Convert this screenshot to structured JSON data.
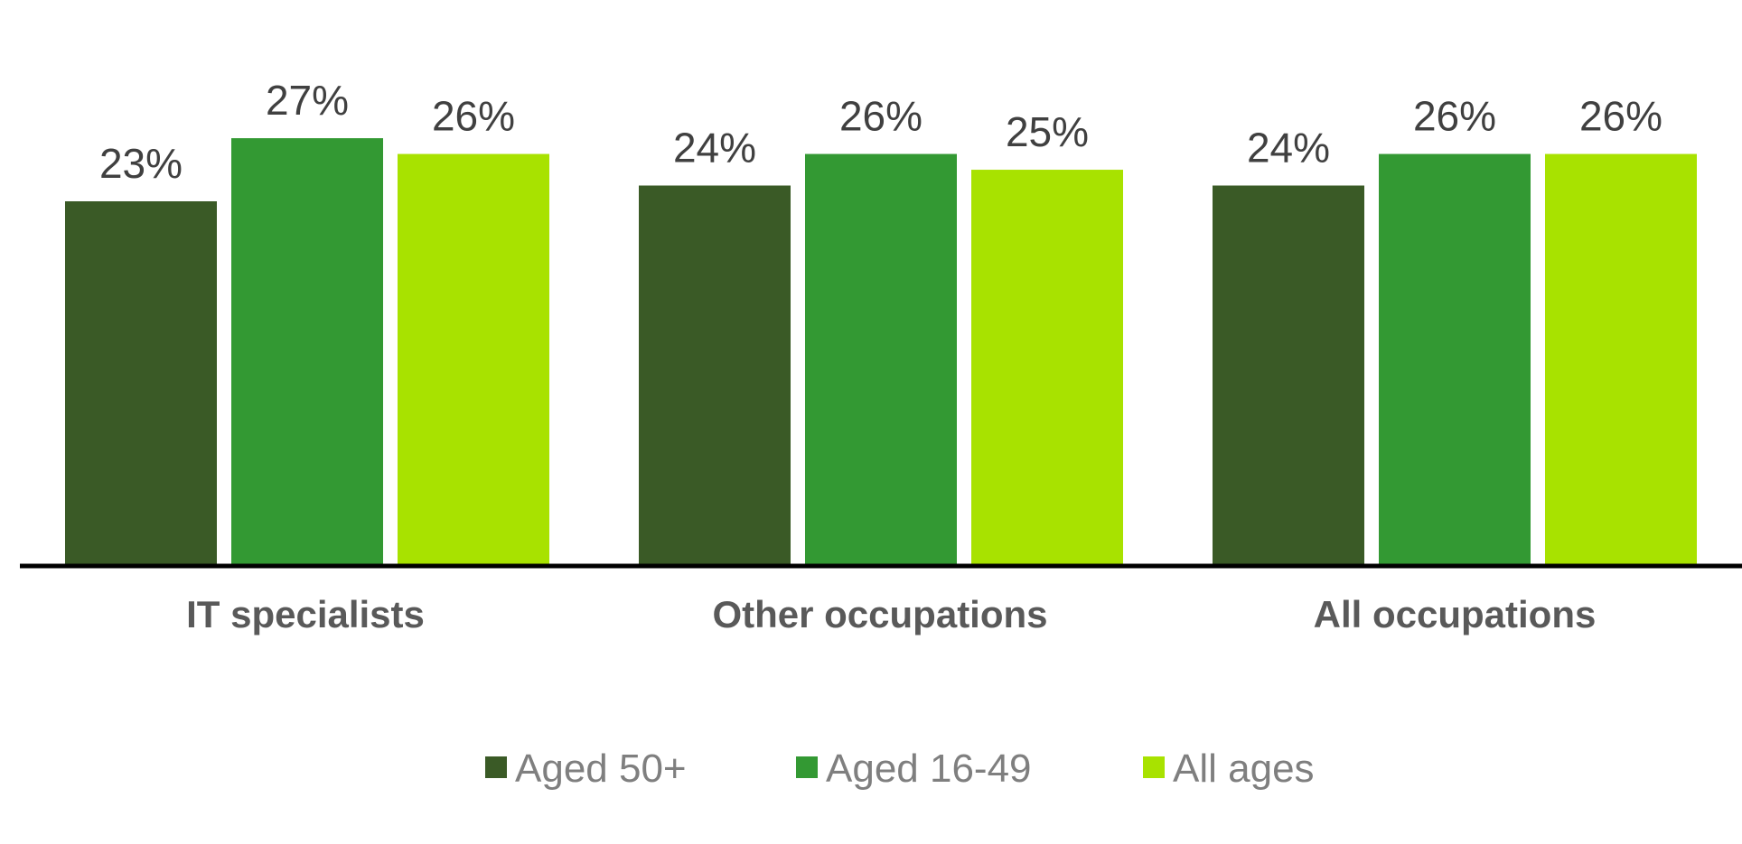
{
  "chart_data": {
    "type": "bar",
    "title": "",
    "xlabel": "",
    "ylabel": "",
    "ylim": [
      0,
      32
    ],
    "grid": false,
    "legend_position": "bottom",
    "categories": [
      "IT specialists",
      "Other occupations",
      "All occupations"
    ],
    "series": [
      {
        "name": "Aged 50+",
        "color": "#3a5a26",
        "values": [
          23,
          24,
          24
        ],
        "labels": [
          "23%",
          "24%",
          "24%"
        ]
      },
      {
        "name": "Aged 16-49",
        "color": "#339933",
        "values": [
          27,
          26,
          26
        ],
        "labels": [
          "27%",
          "26%",
          "26%"
        ]
      },
      {
        "name": "All ages",
        "color": "#a8e200",
        "values": [
          26,
          25,
          26
        ],
        "labels": [
          "26%",
          "25%",
          "26%"
        ]
      }
    ],
    "axis_color": "#000000"
  }
}
